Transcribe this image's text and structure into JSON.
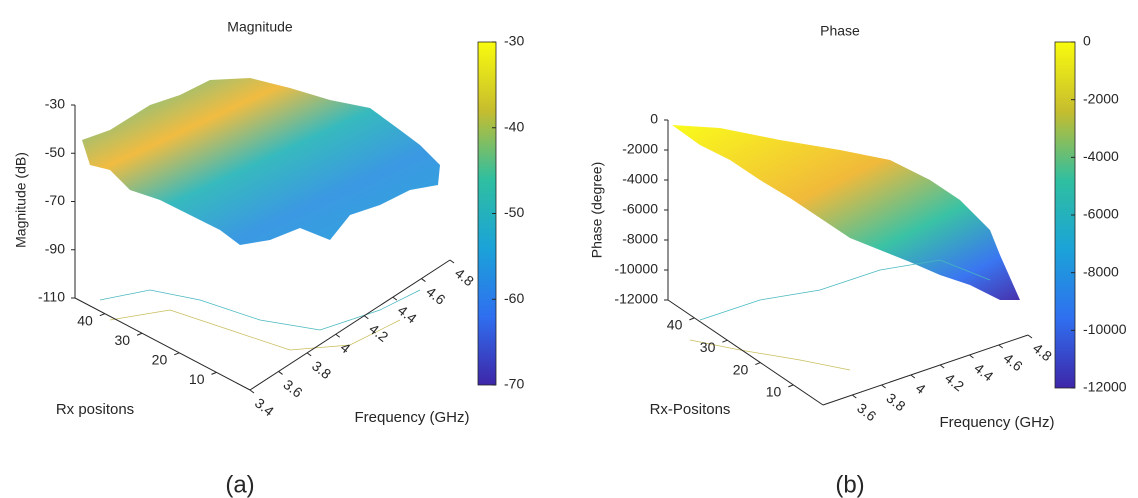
{
  "chart_data": [
    {
      "type": "surface3d",
      "title": "Magnitude",
      "xlabel": "Frequency (GHz)",
      "ylabel": "Rx positons",
      "zlabel": "Magnitude (dB)",
      "xlim": [
        3.4,
        4.8
      ],
      "xticks": [
        3.4,
        3.6,
        3.8,
        4,
        4.2,
        4.4,
        4.6,
        4.8
      ],
      "ylim": [
        1,
        48
      ],
      "yticks": [
        10,
        20,
        30,
        40
      ],
      "zlim": [
        -110,
        -30
      ],
      "zticks": [
        -110,
        -90,
        -70,
        -50,
        -30
      ],
      "clim": [
        -70,
        -30
      ],
      "cticks": [
        -70,
        -60,
        -50,
        -40,
        -30
      ],
      "caption": "(a)"
    },
    {
      "type": "surface3d",
      "title": "Phase",
      "xlabel": "Frequency (GHz)",
      "ylabel": "Rx-Positons",
      "zlabel": "Phase (degree)",
      "xlim": [
        3.4,
        4.8
      ],
      "xticks": [
        3.6,
        3.8,
        4,
        4.2,
        4.4,
        4.6,
        4.8
      ],
      "ylim": [
        1,
        48
      ],
      "yticks": [
        10,
        20,
        30,
        40
      ],
      "zlim": [
        -12000,
        0
      ],
      "zticks": [
        -12000,
        -10000,
        -8000,
        -6000,
        -4000,
        -2000,
        0
      ],
      "clim": [
        -12000,
        0
      ],
      "cticks": [
        -12000,
        -10000,
        -8000,
        -6000,
        -4000,
        -2000,
        0
      ],
      "caption": "(b)"
    }
  ]
}
